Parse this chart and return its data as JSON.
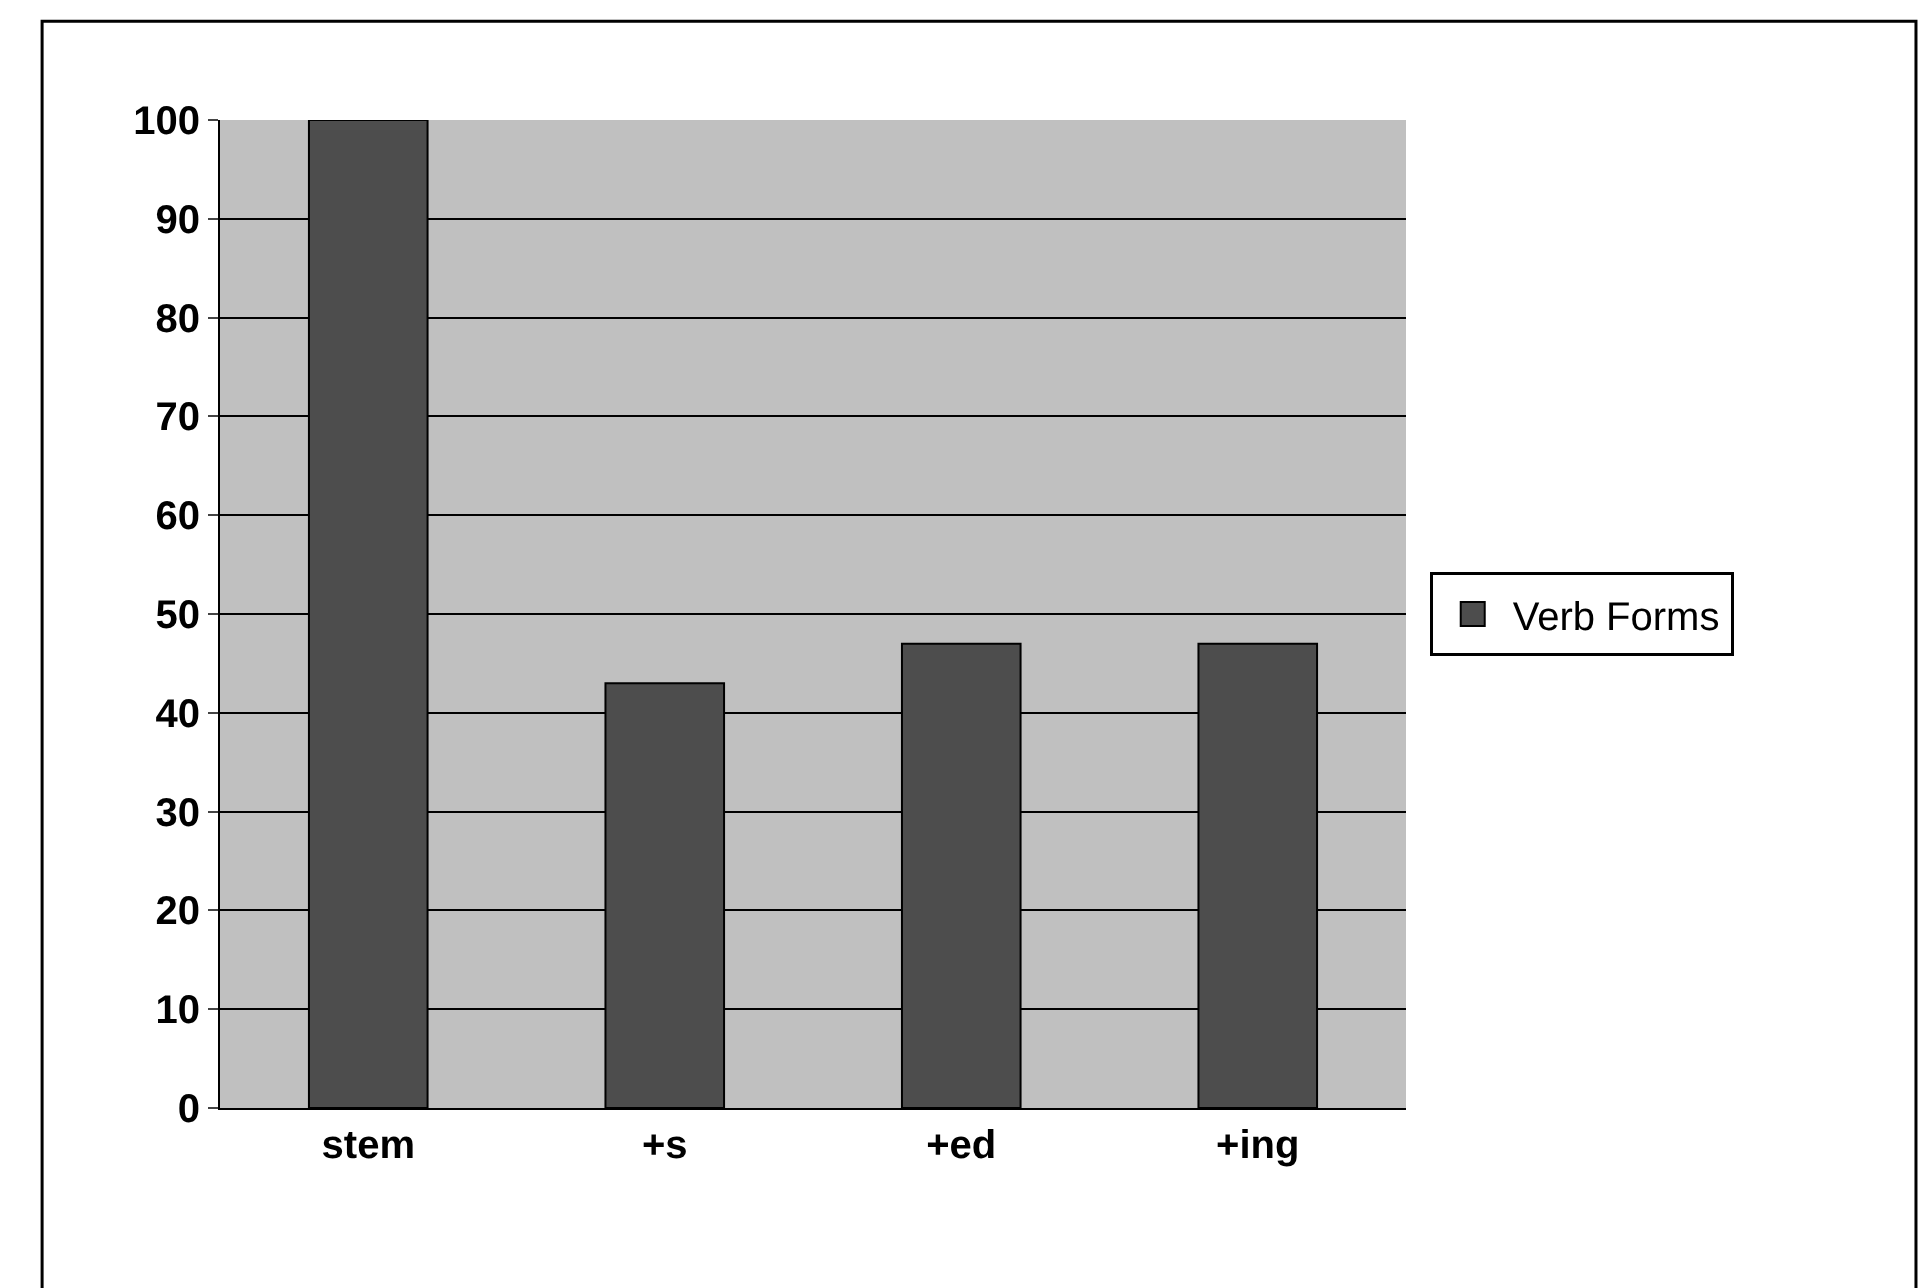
{
  "chart_data": {
    "type": "bar",
    "categories": [
      "stem",
      "+s",
      "+ed",
      "+ing"
    ],
    "series": [
      {
        "name": "Verb Forms",
        "color": "#4d4d4d",
        "values": [
          100,
          43,
          47,
          47
        ]
      }
    ],
    "ylim": [
      0,
      100
    ],
    "yticks": [
      0,
      10,
      20,
      30,
      40,
      50,
      60,
      70,
      80,
      90,
      100
    ],
    "grid": "y",
    "legend": "right"
  }
}
